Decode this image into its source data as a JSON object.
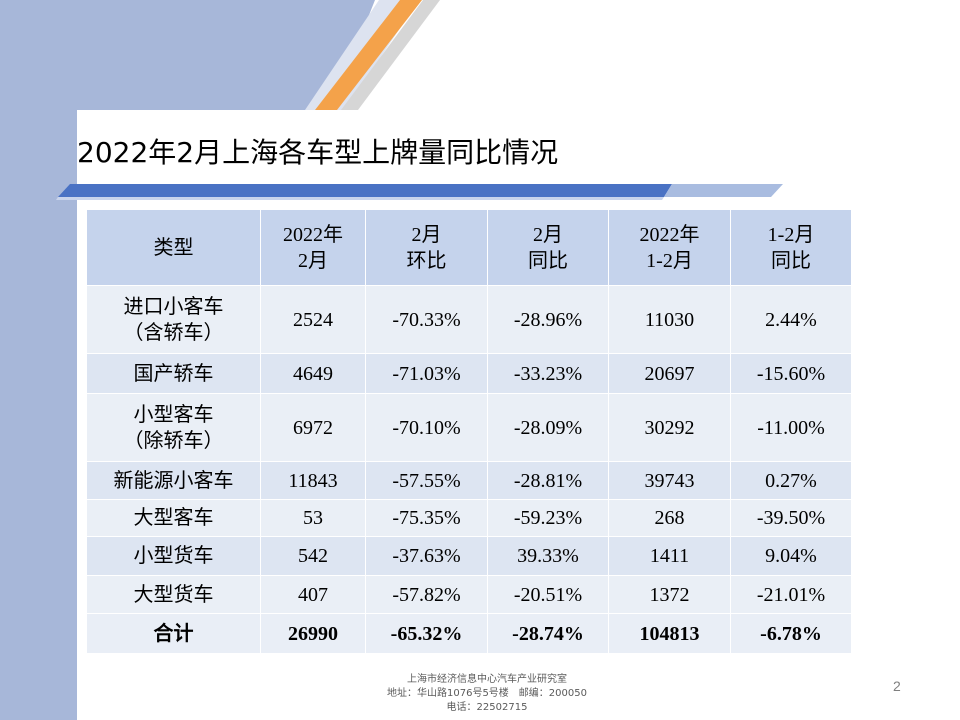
{
  "slide": {
    "title": "2022年2月上海各车型上牌量同比情况",
    "page_number": "2",
    "colors": {
      "accent_orange": "#f4a24a",
      "accent_blue": "#a8b8da",
      "header_fill": "#c5d3ec"
    }
  },
  "table": {
    "headers": [
      [
        "类型"
      ],
      [
        "2022年",
        "2月"
      ],
      [
        "2月",
        "环比"
      ],
      [
        "2月",
        "同比"
      ],
      [
        "2022年",
        "1-2月"
      ],
      [
        "1-2月",
        "同比"
      ]
    ],
    "rows": [
      {
        "type": [
          "进口小客车",
          "（含轿车）"
        ],
        "values": [
          "2524",
          "-70.33%",
          "-28.96%",
          "11030",
          "2.44%"
        ]
      },
      {
        "type": [
          "国产轿车"
        ],
        "values": [
          "4649",
          "-71.03%",
          "-33.23%",
          "20697",
          "-15.60%"
        ]
      },
      {
        "type": [
          "小型客车",
          "（除轿车）"
        ],
        "values": [
          "6972",
          "-70.10%",
          "-28.09%",
          "30292",
          "-11.00%"
        ]
      },
      {
        "type": [
          "新能源小客车"
        ],
        "values": [
          "11843",
          "-57.55%",
          "-28.81%",
          "39743",
          "0.27%"
        ]
      },
      {
        "type": [
          "大型客车"
        ],
        "values": [
          "53",
          "-75.35%",
          "-59.23%",
          "268",
          "-39.50%"
        ]
      },
      {
        "type": [
          "小型货车"
        ],
        "values": [
          "542",
          "-37.63%",
          "39.33%",
          "1411",
          "9.04%"
        ]
      },
      {
        "type": [
          "大型货车"
        ],
        "values": [
          "407",
          "-57.82%",
          "-20.51%",
          "1372",
          "-21.01%"
        ]
      }
    ],
    "total": {
      "type": [
        "合计"
      ],
      "values": [
        "26990",
        "-65.32%",
        "-28.74%",
        "104813",
        "-6.78%"
      ]
    }
  },
  "footer": {
    "line1": "上海市经济信息中心汽车产业研究室",
    "line2": "地址：华山路1076号5号楼　邮编：200050",
    "line3": "电话：22502715"
  }
}
